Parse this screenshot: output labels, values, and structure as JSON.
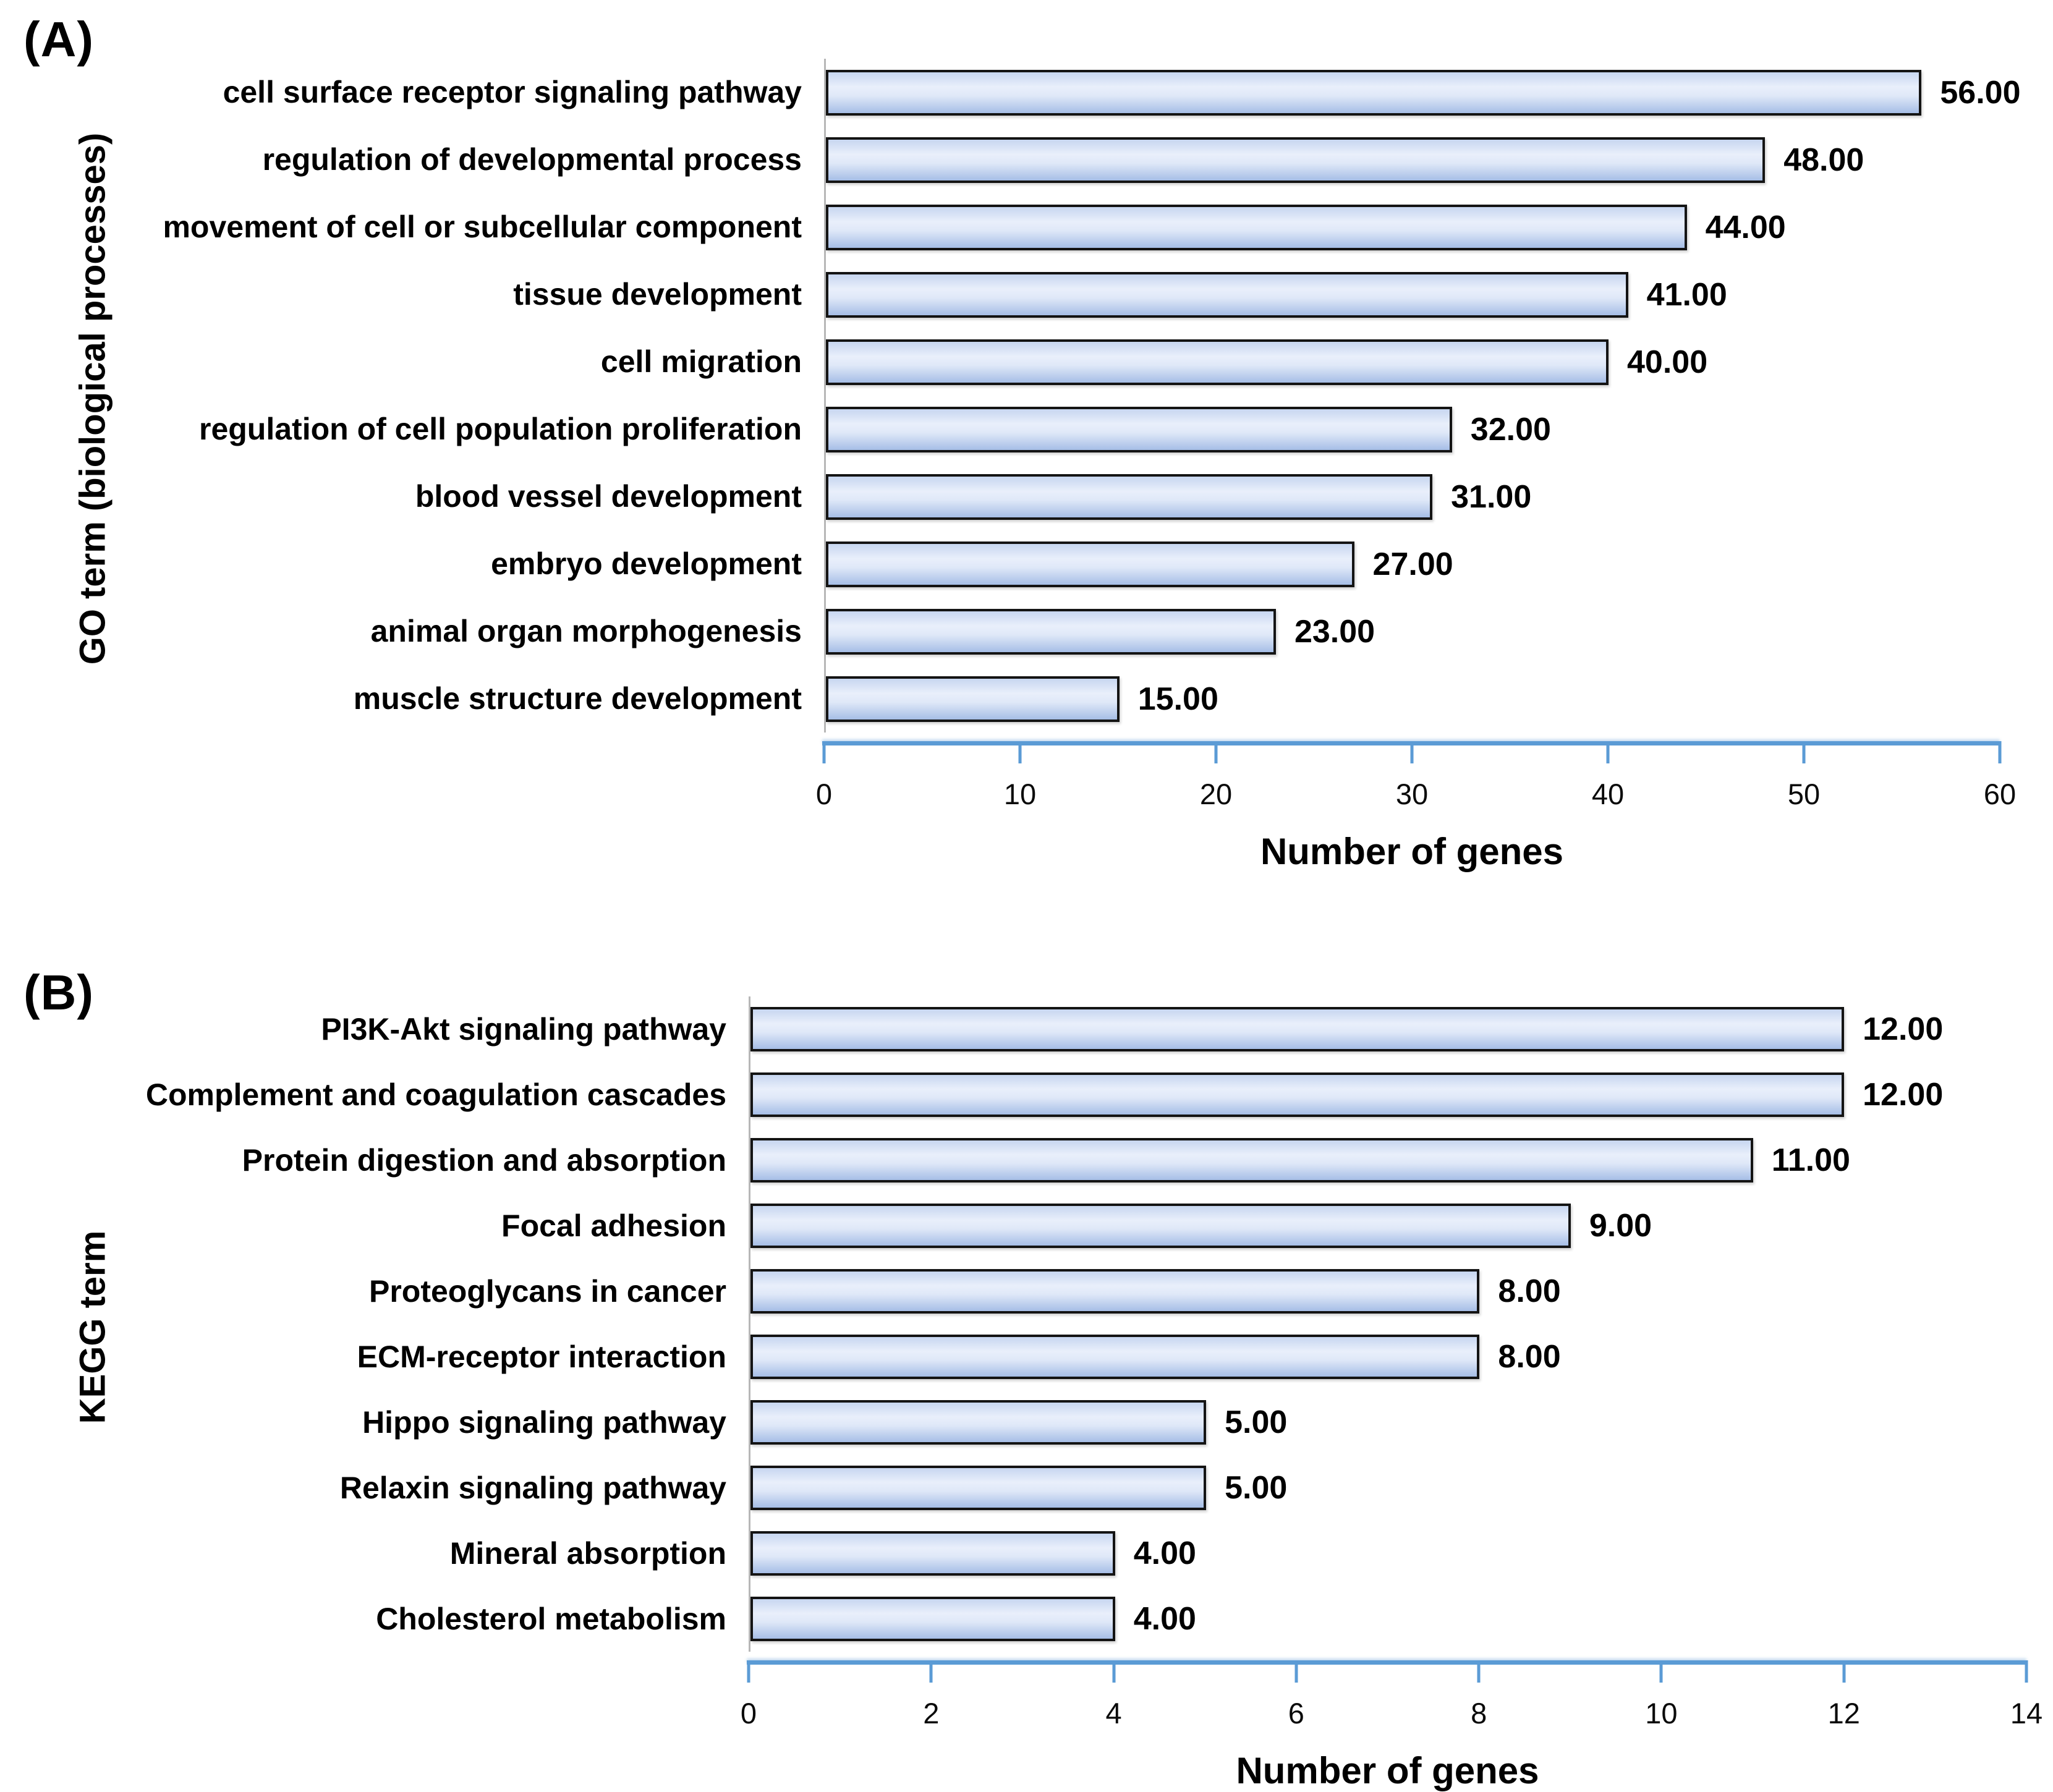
{
  "chart_data": [
    {
      "type": "bar",
      "orientation": "horizontal",
      "panel_label": "(A)",
      "title": "",
      "ylabel": "GO term (biological processes)",
      "xlabel": "Number of genes",
      "xlim": [
        0,
        60
      ],
      "xticks": [
        0,
        10,
        20,
        30,
        40,
        50,
        60
      ],
      "grid": false,
      "legend": false,
      "categories": [
        "cell surface receptor signaling pathway",
        "regulation of developmental process",
        "movement of cell or subcellular component",
        "tissue development",
        "cell migration",
        "regulation of cell population proliferation",
        "blood vessel development",
        "embryo development",
        "animal organ morphogenesis",
        "muscle structure development"
      ],
      "values": [
        56,
        48,
        44,
        41,
        40,
        32,
        31,
        27,
        23,
        15
      ],
      "value_labels": [
        "56.00",
        "48.00",
        "44.00",
        "41.00",
        "40.00",
        "32.00",
        "31.00",
        "27.00",
        "23.00",
        "15.00"
      ]
    },
    {
      "type": "bar",
      "orientation": "horizontal",
      "panel_label": "(B)",
      "title": "",
      "ylabel": "KEGG term",
      "xlabel": "Number of genes",
      "xlim": [
        0,
        14
      ],
      "xticks": [
        0,
        2,
        4,
        6,
        8,
        10,
        12,
        14
      ],
      "grid": false,
      "legend": false,
      "categories": [
        "PI3K-Akt signaling pathway",
        "Complement and coagulation cascades",
        "Protein digestion and absorption",
        "Focal adhesion",
        "Proteoglycans in cancer",
        "ECM-receptor interaction",
        "Hippo signaling pathway",
        "Relaxin signaling pathway",
        "Mineral absorption",
        "Cholesterol metabolism"
      ],
      "values": [
        12,
        12,
        11,
        9,
        8,
        8,
        5,
        5,
        4,
        4
      ],
      "value_labels": [
        "12.00",
        "12.00",
        "11.00",
        "9.00",
        "8.00",
        "8.00",
        "5.00",
        "5.00",
        "4.00",
        "4.00"
      ]
    }
  ],
  "colors": {
    "bar_fill_top": "#c7d6f0",
    "bar_fill_mid": "#e9effb",
    "bar_fill_bottom": "#a6bee6",
    "bar_border": "#141414",
    "axis_line": "#5b9bd5",
    "baseline_gray": "#b7b7b7",
    "text": "#000000"
  }
}
